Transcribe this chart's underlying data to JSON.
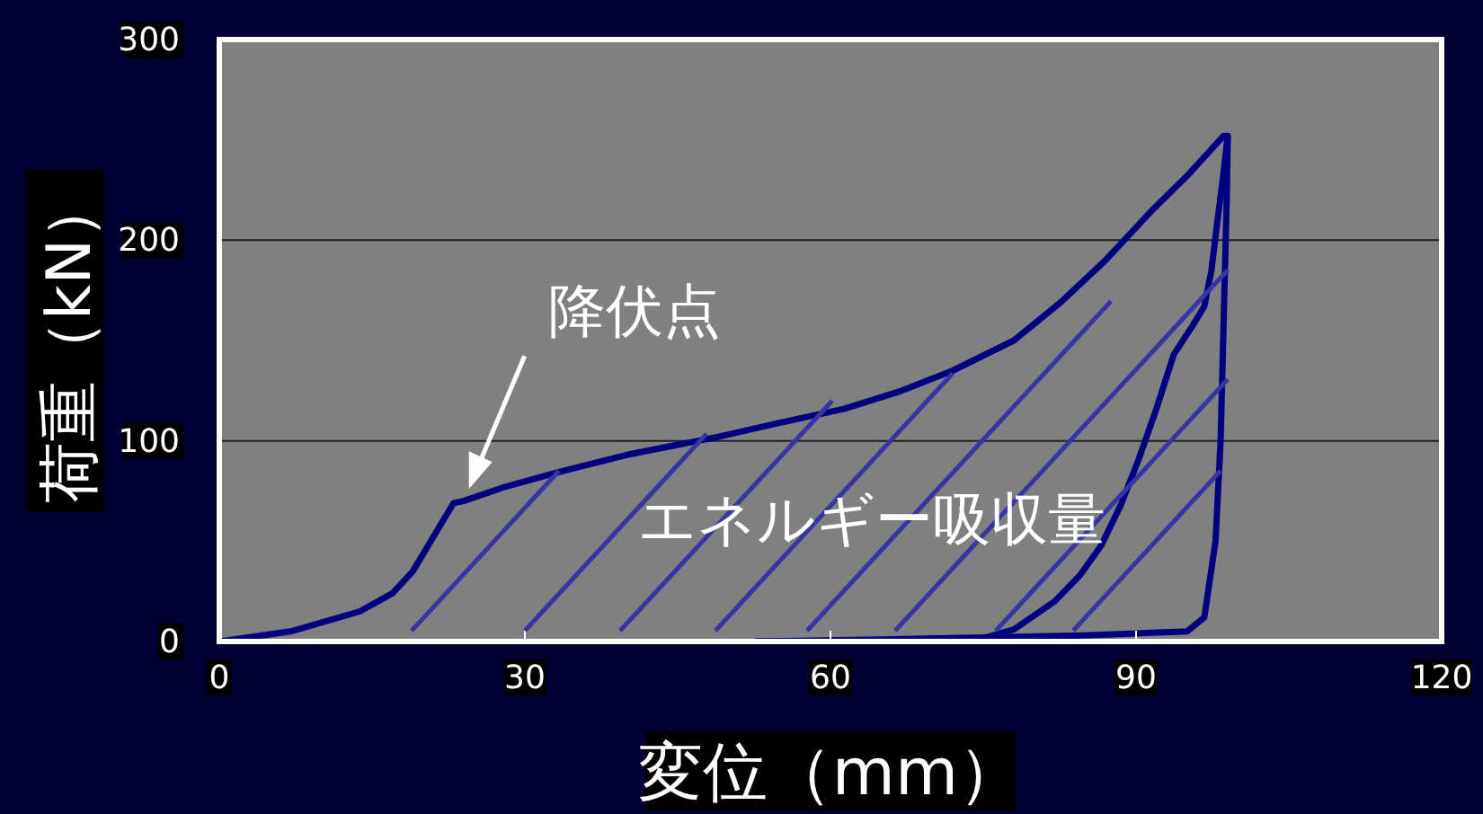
{
  "chart_data": {
    "type": "line",
    "xlabel": "変位（mm）",
    "ylabel": "荷重（kN）",
    "xlim": [
      0,
      120
    ],
    "xticks": [
      0,
      30,
      60,
      90,
      120
    ],
    "ylim": [
      0,
      300
    ],
    "yticks": [
      0,
      100,
      200,
      300
    ],
    "grid": "y",
    "marker": "none",
    "line_style": "solid",
    "series": [
      {
        "color": "#000080",
        "x": [
          0,
          7,
          13.8,
          17,
          19,
          21.7,
          23,
          24,
          28,
          33,
          40,
          49,
          55,
          61.4,
          67,
          72,
          78,
          82.6,
          87,
          91.4,
          95,
          98.6,
          99,
          98.9,
          98.6,
          98.3,
          97.8,
          96.7,
          95,
          85,
          75,
          65,
          52.6
        ],
        "values": [
          0,
          5,
          15,
          24,
          35,
          58,
          69,
          70,
          77,
          84,
          93,
          102,
          109,
          116,
          125,
          135,
          150,
          169,
          190,
          214,
          232,
          252,
          252,
          220,
          160,
          100,
          50,
          12,
          5,
          3,
          2,
          1,
          0
        ]
      },
      {
        "color": "#000080",
        "x": [
          52.6,
          65,
          73.8,
          78,
          82,
          84.5,
          86.6,
          88.5,
          90.2,
          92,
          93.7,
          95.5,
          96.7,
          97.4,
          97.9,
          98.5,
          99
        ],
        "values": [
          0,
          0,
          0,
          6,
          20,
          33,
          48,
          68,
          90,
          116,
          143,
          157,
          167,
          185,
          206,
          230,
          252
        ]
      }
    ],
    "annotations": [
      {
        "text": "降伏点",
        "x": 24.5,
        "y": 76
      },
      "エネルギー吸収量"
    ]
  }
}
